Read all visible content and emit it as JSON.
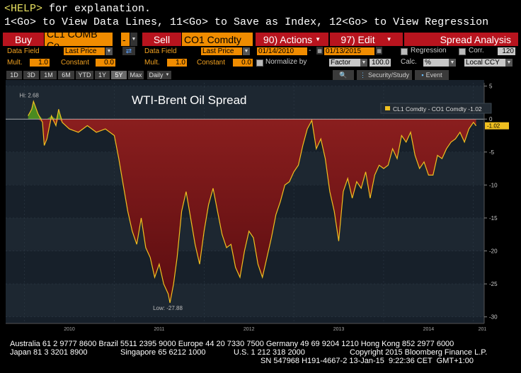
{
  "header": {
    "help_key": "<HELP>",
    "help_text": " for explanation.",
    "go_line": "1<Go> to View Data Lines, 11<Go> to Save as Index, 12<Go> to View Regression"
  },
  "actions": {
    "buy_label": "Buy",
    "sell_label": "Sell",
    "ticker1": "CL1 COMB Co",
    "ticker2": "CO1 Comdty",
    "minus_label": "-",
    "actions_label": "90) Actions",
    "edit_label": "97) Edit",
    "spread_label": "Spread Analysis"
  },
  "settings_row1": {
    "data_field_label": "Data Field",
    "field1_value": "Last Price",
    "field2_value": "Last Price",
    "start_date": "01/14/2010",
    "end_date": "01/13/2015",
    "regression_label": "Regression",
    "corr_label": "Corr.",
    "corr_value": "120"
  },
  "settings_row2": {
    "mult_label": "Mult.",
    "mult1_value": "1.0",
    "constant_label": "Constant",
    "constant1_value": "0.0",
    "mult2_value": "1.0",
    "constant2_value": "0.0",
    "normalize_label": "Normalize by",
    "normalize_value": "Factor",
    "factor_value": "100.0",
    "calc_label": "Calc.",
    "calc_value": "%",
    "currency_value": "Local CCY"
  },
  "toolbar": {
    "ranges": [
      "1D",
      "3D",
      "1M",
      "6M",
      "YTD",
      "1Y",
      "5Y",
      "Max"
    ],
    "selected_range": "5Y",
    "period": "Daily",
    "security_study": "Security/Study",
    "event": "Event"
  },
  "chart_data": {
    "type": "area",
    "title": "WTI-Brent Oil Spread",
    "legend": "CL1 Comdty - CO1 Comdty -1.02",
    "last_value_label": "-1.02",
    "high_label": "Hi: 2.68",
    "low_label": "Low: -27.88",
    "x_labels": [
      "2010",
      "2011",
      "2012",
      "2013",
      "2014",
      "201"
    ],
    "y_ticks": [
      5,
      0,
      -5,
      -10,
      -15,
      -20,
      -25,
      -30
    ],
    "ylim": [
      -31,
      5.5
    ],
    "line_color": "#f0c020",
    "positive_fill": "#4a8a20",
    "negative_fill": "#8a1a1a",
    "x": [
      2010.04,
      2010.08,
      2010.1,
      2010.15,
      2010.2,
      2010.22,
      2010.25,
      2010.3,
      2010.35,
      2010.38,
      2010.42,
      2010.5,
      2010.6,
      2010.7,
      2010.8,
      2010.9,
      2011.0,
      2011.05,
      2011.1,
      2011.15,
      2011.2,
      2011.25,
      2011.3,
      2011.35,
      2011.4,
      2011.45,
      2011.5,
      2011.55,
      2011.6,
      2011.62,
      2011.66,
      2011.7,
      2011.75,
      2011.8,
      2011.85,
      2011.9,
      2011.95,
      2012.0,
      2012.05,
      2012.1,
      2012.15,
      2012.2,
      2012.25,
      2012.3,
      2012.35,
      2012.4,
      2012.45,
      2012.5,
      2012.55,
      2012.6,
      2012.65,
      2012.7,
      2012.75,
      2012.8,
      2012.85,
      2012.9,
      2012.95,
      2013.0,
      2013.05,
      2013.1,
      2013.15,
      2013.2,
      2013.25,
      2013.3,
      2013.35,
      2013.4,
      2013.45,
      2013.5,
      2013.55,
      2013.6,
      2013.65,
      2013.7,
      2013.75,
      2013.8,
      2013.85,
      2013.9,
      2013.95,
      2014.0,
      2014.05,
      2014.1,
      2014.15,
      2014.2,
      2014.25,
      2014.3,
      2014.35,
      2014.4,
      2014.45,
      2014.5,
      2014.55,
      2014.6,
      2014.65,
      2014.7,
      2014.75,
      2014.8,
      2014.85,
      2014.9,
      2014.95,
      2015.0,
      2015.03
    ],
    "y": [
      0.5,
      1.5,
      2.68,
      0.8,
      -0.5,
      -4.0,
      -3.0,
      0.5,
      -1.0,
      1.5,
      -0.5,
      -1.5,
      -2.0,
      -1.0,
      -2.0,
      -1.5,
      -2.5,
      -6.0,
      -10.0,
      -14.0,
      -17.0,
      -19.0,
      -15.0,
      -19.5,
      -21.0,
      -24.0,
      -22.0,
      -25.0,
      -26.5,
      -27.88,
      -25.0,
      -21.0,
      -14.0,
      -11.0,
      -15.0,
      -19.0,
      -22.0,
      -17.0,
      -13.0,
      -10.5,
      -14.0,
      -17.5,
      -19.5,
      -19.0,
      -22.5,
      -24.0,
      -20.0,
      -17.0,
      -18.0,
      -22.0,
      -24.0,
      -21.0,
      -18.0,
      -14.5,
      -12.5,
      -10.0,
      -9.5,
      -8.0,
      -7.0,
      -4.0,
      -1.5,
      -0.2,
      -4.5,
      -3.0,
      -6.0,
      -11.0,
      -14.0,
      -18.5,
      -11.0,
      -9.0,
      -12.0,
      -9.5,
      -10.5,
      -8.0,
      -12.0,
      -8.5,
      -7.0,
      -7.5,
      -7.0,
      -4.5,
      -6.0,
      -2.5,
      -3.5,
      -2.0,
      -5.5,
      -7.5,
      -6.5,
      -8.5,
      -8.5,
      -5.5,
      -6.0,
      -4.5,
      -3.5,
      -3.0,
      -2.0,
      -3.5,
      -1.5,
      -0.5,
      -1.02
    ]
  },
  "footer": {
    "line1": "Australia 61 2 9777 8600 Brazil 5511 2395 9000 Europe 44 20 7330 7500 Germany 49 69 9204 1210 Hong Kong 852 2977 6000",
    "line2a": "Japan 81 3 3201 8900",
    "line2b": "Singapore 65 6212 1000",
    "line2c": "U.S. 1 212 318 2000",
    "line2d": "Copyright 2015 Bloomberg Finance L.P.",
    "line3": "SN 547968 H191-4667-2 13-Jan-15  9:22:36 CET  GMT+1:00"
  }
}
